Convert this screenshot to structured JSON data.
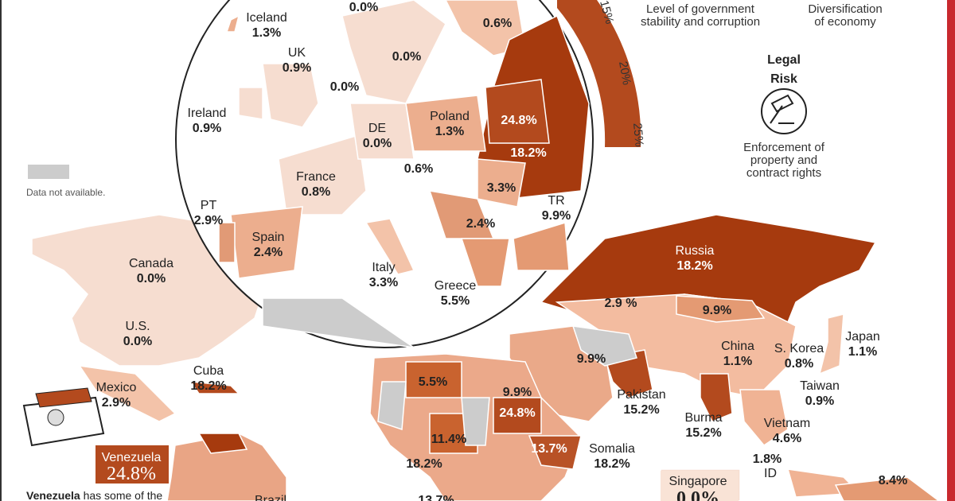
{
  "inset_labels": [
    {
      "value": "0.0%"
    },
    {
      "name": "Iceland",
      "value": "1.3%"
    },
    {
      "name": "UK",
      "value": "0.9%"
    },
    {
      "value": "0.6%"
    },
    {
      "value": "0.0%"
    },
    {
      "value": "0.0%"
    },
    {
      "name": "Ireland",
      "value": "0.9%"
    },
    {
      "name": "DE",
      "value": "0.0%"
    },
    {
      "name": "Poland",
      "value": "1.3%"
    },
    {
      "value": "24.8%"
    },
    {
      "value": "18.2%"
    },
    {
      "value": "0.6%"
    },
    {
      "name": "France",
      "value": "0.8%"
    },
    {
      "value": "3.3%"
    },
    {
      "name": "TR",
      "value": "9.9%"
    },
    {
      "value": "2.4%"
    },
    {
      "name": "PT",
      "value": "2.9%"
    },
    {
      "name": "Spain",
      "value": "2.4%"
    },
    {
      "name": "Italy",
      "value": "3.3%"
    },
    {
      "name": "Greece",
      "value": "5.5%"
    }
  ],
  "world_labels": [
    {
      "name": "Canada",
      "value": "0.0%"
    },
    {
      "name": "U.S.",
      "value": "0.0%"
    },
    {
      "name": "Mexico",
      "value": "2.9%"
    },
    {
      "name": "Cuba",
      "value": "18.2%"
    },
    {
      "name": "Russia",
      "value": "18.2%"
    },
    {
      "value": "2.9 %"
    },
    {
      "value": "9.9%"
    },
    {
      "name": "China",
      "value": "1.1%"
    },
    {
      "name": "Japan",
      "value": "1.1%"
    },
    {
      "name": "S. Korea",
      "value": "0.8%"
    },
    {
      "name": "Taiwan",
      "value": "0.9%"
    },
    {
      "value": "9.9%"
    },
    {
      "name": "Pakistan",
      "value": "15.2%"
    },
    {
      "name": "Burma",
      "value": "15.2%"
    },
    {
      "name": "Vietnam",
      "value": "4.6%"
    },
    {
      "value": "1.8%"
    },
    {
      "name": "ID"
    },
    {
      "value": "8.4%"
    },
    {
      "value": "5.5%"
    },
    {
      "value": "9.9%"
    },
    {
      "value": "24.8%"
    },
    {
      "value": "11.4%"
    },
    {
      "value": "13.7%"
    },
    {
      "name": "Somalia",
      "value": "18.2%"
    },
    {
      "value": "18.2%"
    },
    {
      "value": "13.7%"
    },
    {
      "name": "Brazil"
    }
  ],
  "callouts": [
    {
      "name": "Venezuela",
      "value": "24.8%"
    },
    {
      "name": "Singapore",
      "value": "0.0%"
    }
  ],
  "scale_ticks": [
    "15%",
    "20%",
    "25%"
  ],
  "legend": {
    "stability": [
      "Level of government",
      "stability and corruption"
    ],
    "economy": [
      "Diversification",
      "of economy"
    ],
    "legal_title": [
      "Legal",
      "Risk"
    ],
    "legal_desc": [
      "Enforcement of",
      "property and",
      "contract rights"
    ],
    "no_data": "Data not available."
  },
  "note": {
    "bold": "Venezuela",
    "text": " has some of the"
  }
}
